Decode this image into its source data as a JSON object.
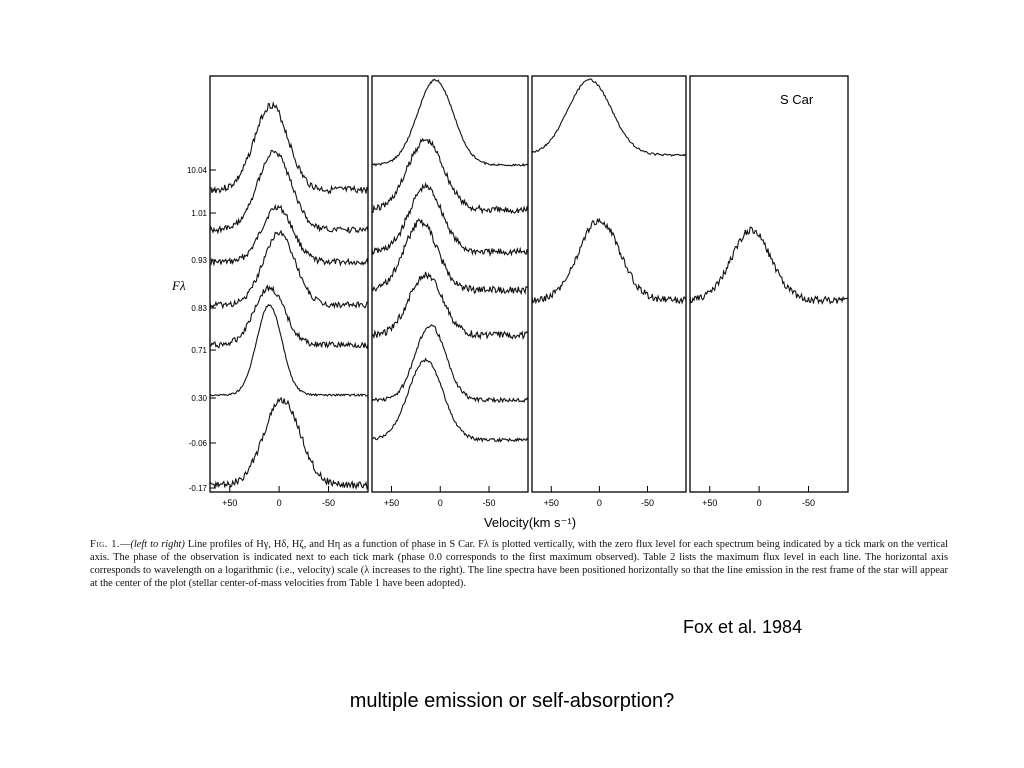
{
  "chart_data": {
    "type": "line",
    "ylabel": "Fλ",
    "xlabel": "Velocity(km s⁻¹)",
    "annotation": "S Car",
    "x_tick_labels": [
      "+50",
      "0",
      "-50"
    ],
    "x_ticks": [
      50,
      0,
      -50
    ],
    "xlim": [
      70,
      -90
    ],
    "phase_tick_labels": [
      "10.04",
      "1.01",
      "0.93",
      "0.83",
      "0.71",
      "0.30",
      "-0.06",
      "-0.17"
    ],
    "panels": [
      {
        "line": "Hγ",
        "series": [
          {
            "phase": "10.04",
            "baseline": 190,
            "peak_v": 8,
            "amp": 85,
            "width": 24,
            "noise": 7
          },
          {
            "phase": "1.01",
            "baseline": 230,
            "peak_v": 5,
            "amp": 78,
            "width": 24,
            "noise": 6
          },
          {
            "phase": "0.93",
            "baseline": 262,
            "peak_v": 2,
            "amp": 55,
            "width": 22,
            "noise": 6
          },
          {
            "phase": "0.83",
            "baseline": 305,
            "peak_v": 0,
            "amp": 72,
            "width": 23,
            "noise": 6
          },
          {
            "phase": "0.71",
            "baseline": 345,
            "peak_v": 10,
            "amp": 57,
            "width": 22,
            "noise": 6
          },
          {
            "phase": "0.30",
            "baseline": 395,
            "peak_v": 10,
            "amp": 90,
            "width": 18,
            "noise": 2
          },
          {
            "phase": "-0.17",
            "baseline": 485,
            "peak_v": -3,
            "amp": 85,
            "width": 26,
            "noise": 7
          }
        ]
      },
      {
        "line": "Hδ",
        "series": [
          {
            "phase": "10.04",
            "baseline": 165,
            "peak_v": 5,
            "amp": 85,
            "width": 26,
            "noise": 2
          },
          {
            "phase": "1.01",
            "baseline": 210,
            "peak_v": 15,
            "amp": 70,
            "width": 26,
            "noise": 7
          },
          {
            "phase": "0.93",
            "baseline": 252,
            "peak_v": 15,
            "amp": 65,
            "width": 24,
            "noise": 7
          },
          {
            "phase": "0.83",
            "baseline": 290,
            "peak_v": 20,
            "amp": 68,
            "width": 24,
            "noise": 7
          },
          {
            "phase": "0.71",
            "baseline": 335,
            "peak_v": 15,
            "amp": 60,
            "width": 24,
            "noise": 7
          },
          {
            "phase": "0.30",
            "baseline": 400,
            "peak_v": 10,
            "amp": 75,
            "width": 22,
            "noise": 4
          },
          {
            "phase": "-0.17",
            "baseline": 440,
            "peak_v": 15,
            "amp": 80,
            "width": 25,
            "noise": 3
          }
        ]
      },
      {
        "line": "Hζ",
        "series": [
          {
            "phase": "10.04",
            "baseline": 155,
            "peak_v": 10,
            "amp": 75,
            "width": 32,
            "noise": 2
          },
          {
            "phase": "1.01",
            "baseline": 300,
            "peak_v": 0,
            "amp": 80,
            "width": 30,
            "noise": 7
          }
        ]
      },
      {
        "line": "Hη",
        "series": [
          {
            "phase": "1.01",
            "baseline": 300,
            "peak_v": 8,
            "amp": 70,
            "width": 28,
            "noise": 7
          }
        ]
      }
    ]
  },
  "caption": {
    "fig_label": "Fig. 1.",
    "lead": "(left to right)",
    "text": "Line profiles of Hγ, Hδ, Hζ, and Hη as a function of phase in S Car. Fλ is plotted vertically, with the zero flux level for each spectrum being indicated by a tick mark on the vertical axis. The phase of the observation is indicated next to each tick mark (phase 0.0 corresponds to the first maximum observed). Table 2 lists the maximum flux level in each line. The horizontal axis corresponds to wavelength on a logarithmic (i.e., velocity) scale (λ increases to the right). The line spectra have been positioned horizontally so that the line emission in the rest frame of the star will appear at the center of the plot (stellar center-of-mass velocities from Table 1 have been adopted)."
  },
  "credit": "Fox et al. 1984",
  "question": "multiple emission or self-absorption?"
}
